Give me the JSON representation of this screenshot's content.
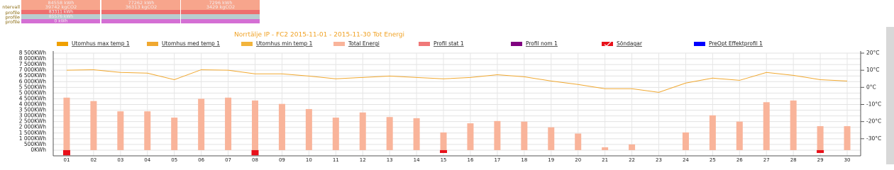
{
  "summary": {
    "rows": [
      {
        "label": "ntervall",
        "color": "#f7a58c",
        "cells": [
          [
            "84558 kWh",
            "39742 kgCO2"
          ],
          [
            "77262 kWh",
            "36313 kgCO2"
          ],
          [
            "7296 kWh",
            "3429 kgCO2"
          ]
        ]
      },
      {
        "label": "profile",
        "color": "#ee6f6f",
        "cells": [
          [
            "83311 kWh"
          ],
          [],
          []
        ]
      },
      {
        "label": "profile",
        "color": "#b9cdd0",
        "cells": [
          [
            "85576 kWh"
          ],
          [],
          []
        ]
      },
      {
        "label": "profile",
        "color": "#d46fd4",
        "cells": [
          [
            "0 kWh"
          ],
          [],
          []
        ]
      }
    ]
  },
  "chart_data": {
    "type": "combo",
    "title": "Norrtälje IP - FC2 2015-11-01 - 2015-11-30 Tot Energi",
    "categories": [
      "01",
      "02",
      "03",
      "04",
      "05",
      "06",
      "07",
      "08",
      "09",
      "10",
      "11",
      "12",
      "13",
      "14",
      "15",
      "16",
      "17",
      "18",
      "19",
      "20",
      "21",
      "22",
      "23",
      "24",
      "25",
      "26",
      "27",
      "28",
      "29",
      "30"
    ],
    "ylim": [
      -500,
      8500
    ],
    "yticks": [
      {
        "value": 0,
        "label": "0KWh"
      },
      {
        "value": 500,
        "label": "500KWh"
      },
      {
        "value": 1000,
        "label": "1 000KWh"
      },
      {
        "value": 1500,
        "label": "1 500KWh"
      },
      {
        "value": 2000,
        "label": "2 000KWh"
      },
      {
        "value": 2500,
        "label": "2 500KWh"
      },
      {
        "value": 3000,
        "label": "3 000KWh"
      },
      {
        "value": 3500,
        "label": "3 500KWh"
      },
      {
        "value": 4000,
        "label": "4 000KWh"
      },
      {
        "value": 4500,
        "label": "4 500KWh"
      },
      {
        "value": 5000,
        "label": "5 000KWh"
      },
      {
        "value": 5500,
        "label": "5 500KWh"
      },
      {
        "value": 6000,
        "label": "6 000KWh"
      },
      {
        "value": 6500,
        "label": "6 500KWh"
      },
      {
        "value": 7000,
        "label": "7 000KWh"
      },
      {
        "value": 7500,
        "label": "7 500KWh"
      },
      {
        "value": 8000,
        "label": "8 000KWh"
      },
      {
        "value": 8500,
        "label": "8 500KWh"
      }
    ],
    "y2lim": [
      -40,
      20
    ],
    "y2ticks": [
      {
        "value": 20,
        "label": "20°C"
      },
      {
        "value": 10,
        "label": "10°C"
      },
      {
        "value": 0,
        "label": "0°C"
      },
      {
        "value": -10,
        "label": "-10°C"
      },
      {
        "value": -20,
        "label": "-20°C"
      },
      {
        "value": -30,
        "label": "-30°C"
      }
    ],
    "grid": true,
    "series": [
      {
        "name": "Utomhus max temp 1",
        "color": "#f0a000",
        "kind": "line",
        "axis": "y2",
        "values": [
          null,
          null,
          null,
          null,
          null,
          null,
          null,
          null,
          null,
          null,
          null,
          null,
          null,
          null,
          null,
          null,
          null,
          null,
          null,
          null,
          null,
          null,
          null,
          null,
          null,
          null,
          null,
          null,
          null,
          null
        ]
      },
      {
        "name": "Utomhus med temp 1",
        "color": "#f0a830",
        "kind": "line",
        "axis": "y2",
        "values": [
          10,
          10.3,
          8.7,
          8.3,
          4.5,
          10.3,
          10,
          7.9,
          7.9,
          6.6,
          5,
          5.8,
          6.6,
          5.8,
          5,
          5.8,
          7.4,
          6.2,
          3.7,
          1.7,
          -0.8,
          -0.8,
          -2.9,
          2.5,
          5.4,
          4.1,
          8.7,
          7,
          4.5,
          3.7
        ]
      },
      {
        "name": "Utomhus min temp 1",
        "color": "#f2b43c",
        "kind": "line",
        "axis": "y2",
        "values": [
          null,
          null,
          null,
          null,
          null,
          null,
          null,
          null,
          null,
          null,
          null,
          null,
          null,
          null,
          null,
          null,
          null,
          null,
          null,
          null,
          null,
          null,
          null,
          null,
          null,
          null,
          null,
          null,
          null,
          null
        ]
      },
      {
        "name": "Total Energi",
        "color": "#f9b49a",
        "kind": "bar",
        "values": [
          4600,
          4300,
          3400,
          3400,
          2850,
          4500,
          4600,
          4350,
          4050,
          3600,
          2850,
          3300,
          2900,
          2800,
          1550,
          2350,
          2550,
          2500,
          2000,
          1450,
          250,
          500,
          0,
          1550,
          3050,
          2500,
          4200,
          4350,
          2100,
          2100
        ]
      },
      {
        "name": "Profil stat 1",
        "color": "#f07878",
        "kind": "bar",
        "values": [
          null,
          null,
          null,
          null,
          null,
          null,
          null,
          null,
          null,
          null,
          null,
          null,
          null,
          null,
          null,
          null,
          null,
          null,
          null,
          null,
          null,
          null,
          null,
          null,
          null,
          null,
          null,
          null,
          null,
          null
        ]
      },
      {
        "name": "Profil nom 1",
        "color": "#800080",
        "kind": "bar",
        "values": [
          null,
          null,
          null,
          null,
          null,
          null,
          null,
          null,
          null,
          null,
          null,
          null,
          null,
          null,
          null,
          null,
          null,
          null,
          null,
          null,
          null,
          null,
          null,
          null,
          null,
          null,
          null,
          null,
          null,
          null
        ]
      },
      {
        "name": "Söndagar",
        "color": "#e8101a",
        "kind": "sunday",
        "values": [
          -450,
          null,
          null,
          null,
          null,
          null,
          null,
          -450,
          null,
          null,
          null,
          null,
          null,
          null,
          -250,
          null,
          null,
          null,
          null,
          null,
          null,
          null,
          null,
          null,
          null,
          null,
          null,
          null,
          -250,
          null
        ]
      },
      {
        "name": "PreOpt Effektprofil 1",
        "color": "#0000ff",
        "kind": "bar",
        "values": [
          null,
          null,
          null,
          null,
          null,
          null,
          null,
          null,
          null,
          null,
          null,
          null,
          null,
          null,
          null,
          null,
          null,
          null,
          null,
          null,
          null,
          null,
          null,
          null,
          null,
          null,
          null,
          null,
          null,
          null
        ]
      }
    ]
  }
}
